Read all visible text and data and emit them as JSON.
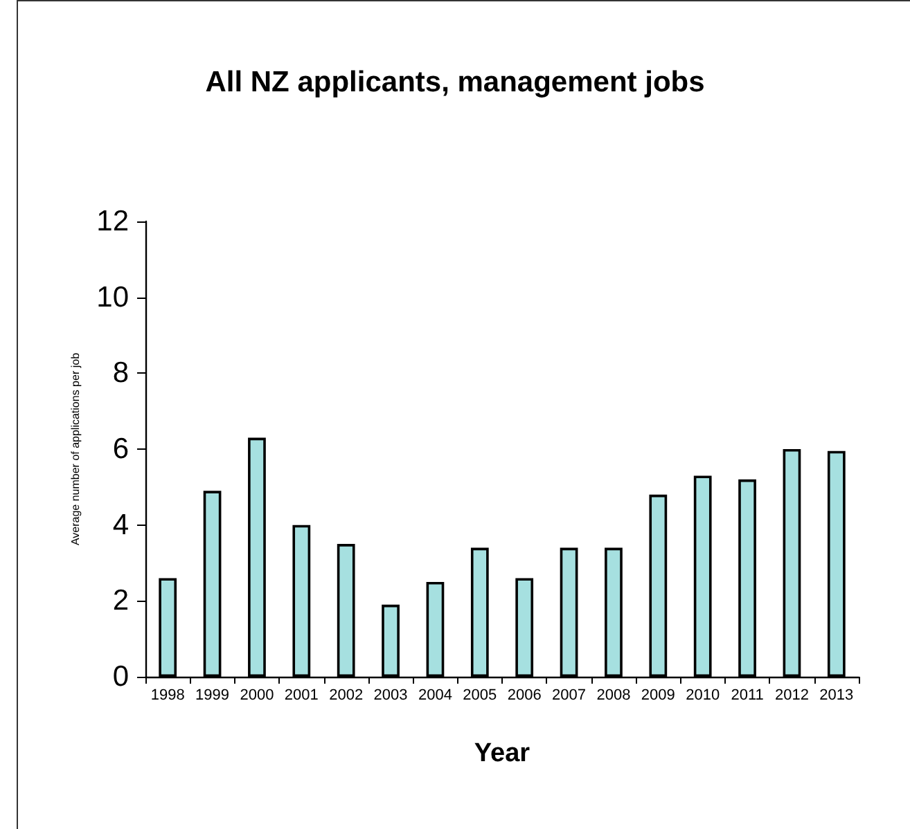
{
  "chart_data": {
    "type": "bar",
    "title": "All NZ applicants, management jobs",
    "xlabel": "Year",
    "ylabel": "Average number of applications per job",
    "categories": [
      "1998",
      "1999",
      "2000",
      "2001",
      "2002",
      "2003",
      "2004",
      "2005",
      "2006",
      "2007",
      "2008",
      "2009",
      "2010",
      "2011",
      "2012",
      "2013"
    ],
    "values": [
      2.6,
      4.9,
      6.3,
      4.0,
      3.5,
      1.9,
      2.5,
      3.4,
      2.6,
      3.4,
      3.4,
      4.8,
      5.3,
      5.2,
      6.0,
      5.95
    ],
    "color": "#a6e0e0",
    "ylim": [
      0,
      12
    ],
    "yticks": [
      0,
      2,
      4,
      6,
      8,
      10,
      12
    ],
    "grid": false
  }
}
